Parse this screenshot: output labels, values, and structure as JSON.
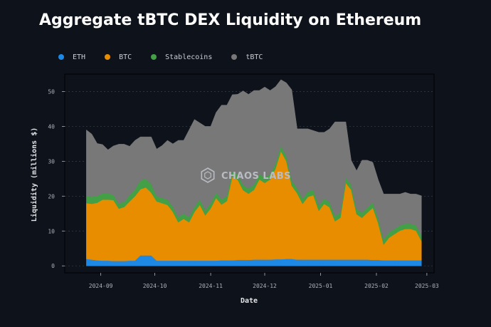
{
  "title": "Aggregate tBTC DEX Liquidity on Ethereum",
  "watermark": "CHAOS LABS",
  "chart_data": {
    "type": "area",
    "stacked": true,
    "title": "Aggregate tBTC DEX Liquidity on Ethereum",
    "xlabel": "Date",
    "ylabel": "Liquidity (millions $)",
    "ylim": [
      -2,
      55
    ],
    "yticks": [
      0,
      10,
      20,
      30,
      40,
      50
    ],
    "xticks": [
      "2024-09",
      "2024-10",
      "2024-11",
      "2024-12",
      "2025-01",
      "2025-02",
      "2025-03"
    ],
    "grid": "horizontal-dotted",
    "legend_position": "top-left",
    "colors": {
      "ETH": "#1e88e5",
      "BTC": "#e88c00",
      "Stablecoins": "#43a047",
      "tBTC": "#787878"
    },
    "x": [
      "2024-08-24",
      "2024-08-27",
      "2024-08-30",
      "2024-09-02",
      "2024-09-05",
      "2024-09-08",
      "2024-09-11",
      "2024-09-14",
      "2024-09-17",
      "2024-09-20",
      "2024-09-23",
      "2024-09-26",
      "2024-09-29",
      "2024-10-02",
      "2024-10-05",
      "2024-10-08",
      "2024-10-11",
      "2024-10-14",
      "2024-10-17",
      "2024-10-20",
      "2024-10-23",
      "2024-10-26",
      "2024-10-29",
      "2024-11-01",
      "2024-11-04",
      "2024-11-07",
      "2024-11-10",
      "2024-11-13",
      "2024-11-16",
      "2024-11-19",
      "2024-11-22",
      "2024-11-25",
      "2024-11-28",
      "2024-12-01",
      "2024-12-04",
      "2024-12-07",
      "2024-12-10",
      "2024-12-13",
      "2024-12-16",
      "2024-12-19",
      "2024-12-22",
      "2024-12-25",
      "2024-12-28",
      "2024-12-31",
      "2025-01-03",
      "2025-01-06",
      "2025-01-09",
      "2025-01-12",
      "2025-01-15",
      "2025-01-18",
      "2025-01-21",
      "2025-01-24",
      "2025-01-27",
      "2025-01-30",
      "2025-02-02",
      "2025-02-05",
      "2025-02-08",
      "2025-02-11",
      "2025-02-14",
      "2025-02-17",
      "2025-02-20",
      "2025-02-23",
      "2025-02-26"
    ],
    "series": [
      {
        "name": "ETH",
        "values": [
          2,
          1.8,
          1.6,
          1.5,
          1.5,
          1.4,
          1.4,
          1.4,
          1.5,
          1.5,
          3,
          3,
          3,
          1.5,
          1.5,
          1.5,
          1.5,
          1.5,
          1.5,
          1.5,
          1.5,
          1.5,
          1.5,
          1.5,
          1.5,
          1.6,
          1.6,
          1.6,
          1.7,
          1.7,
          1.7,
          1.8,
          1.8,
          1.8,
          1.8,
          1.9,
          1.9,
          2,
          2,
          1.8,
          1.8,
          1.8,
          1.8,
          1.8,
          1.8,
          1.8,
          1.8,
          1.8,
          1.8,
          1.8,
          1.8,
          1.8,
          1.8,
          1.7,
          1.7,
          1.6,
          1.6,
          1.6,
          1.6,
          1.6,
          1.6,
          1.6,
          1.6
        ]
      },
      {
        "name": "BTC",
        "values": [
          16,
          16,
          16.5,
          17.5,
          17.5,
          17.5,
          15,
          15.5,
          17,
          18.5,
          19,
          19.5,
          18,
          17,
          16.5,
          16,
          14,
          11,
          12,
          11,
          14,
          16,
          13,
          15,
          18,
          16,
          17,
          24,
          23,
          20,
          19,
          20,
          23,
          22,
          23,
          26,
          31,
          28,
          21,
          19,
          16,
          18,
          18.5,
          14,
          16,
          15,
          11,
          12,
          22,
          20,
          13,
          12,
          13.5,
          15,
          10.5,
          4.5,
          6.5,
          7.5,
          8.5,
          9,
          9,
          8.5,
          5.5
        ]
      },
      {
        "name": "Stablecoins",
        "values": [
          2,
          2,
          2,
          1.8,
          1.8,
          1.5,
          1.5,
          1.5,
          1.8,
          2,
          2.5,
          2.5,
          2.5,
          1.5,
          1.5,
          1.5,
          1.5,
          1.5,
          1.5,
          1.5,
          1.5,
          1.5,
          1.5,
          1.5,
          1.5,
          1.5,
          1.5,
          1.5,
          1.5,
          1.5,
          1.5,
          1.5,
          1.5,
          1.5,
          1.5,
          1.5,
          1.5,
          1.5,
          1.5,
          1.5,
          1.5,
          1.5,
          1.5,
          1.5,
          1.5,
          1.5,
          1.5,
          1.5,
          1.5,
          1.5,
          1.5,
          1.5,
          1.5,
          1.5,
          1.5,
          1.5,
          1.5,
          1.5,
          1.5,
          1.5,
          1.5,
          1.5,
          1.5
        ]
      },
      {
        "name": "tBTC",
        "values": [
          19,
          18,
          15,
          14,
          12.5,
          14,
          17,
          16.5,
          14,
          14,
          12.5,
          12,
          13.5,
          13.5,
          15,
          17,
          18,
          22,
          21,
          25,
          25,
          22,
          24,
          22,
          23,
          27,
          26,
          22,
          23,
          27,
          27,
          27,
          24,
          26,
          24,
          22,
          19,
          21,
          26,
          17,
          20,
          18,
          17,
          21,
          19,
          21,
          27,
          26,
          16,
          7,
          11,
          15,
          13.5,
          11.5,
          11,
          13,
          11,
          10,
          9,
          9,
          8.5,
          9,
          11.5
        ]
      }
    ]
  }
}
